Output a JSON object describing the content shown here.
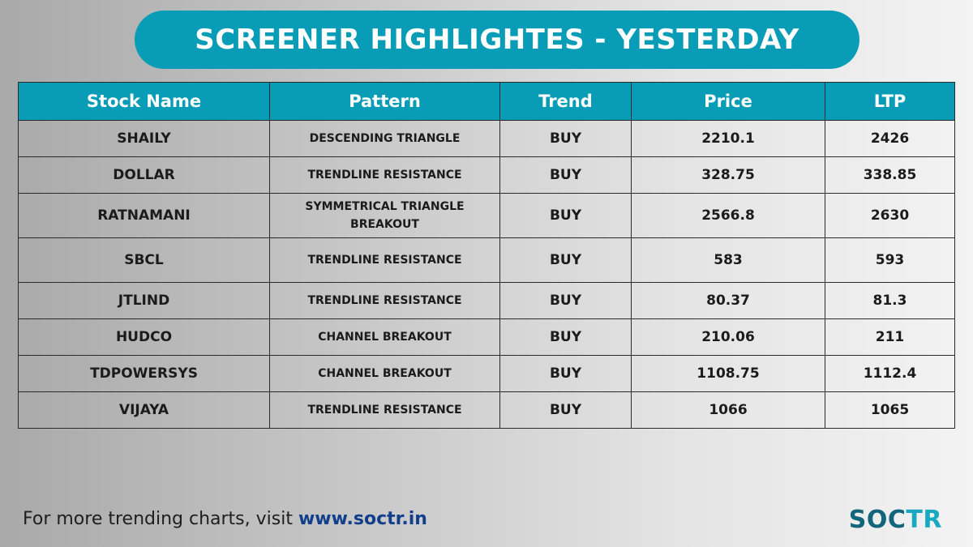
{
  "header": {
    "title": "SCREENER HIGHLIGHTES - YESTERDAY",
    "accent_color": "#099cb6"
  },
  "table": {
    "columns": [
      "Stock Name",
      "Pattern",
      "Trend",
      "Price",
      "LTP"
    ],
    "rows": [
      {
        "stock": "SHAILY",
        "pattern": "DESCENDING TRIANGLE",
        "trend": "BUY",
        "price": "2210.1",
        "ltp": "2426"
      },
      {
        "stock": "DOLLAR",
        "pattern": "TRENDLINE RESISTANCE",
        "trend": "BUY",
        "price": "328.75",
        "ltp": "338.85"
      },
      {
        "stock": "RATNAMANI",
        "pattern": "SYMMETRICAL TRIANGLE BREAKOUT",
        "trend": "BUY",
        "price": "2566.8",
        "ltp": "2630"
      },
      {
        "stock": "SBCL",
        "pattern": "TRENDLINE RESISTANCE",
        "trend": "BUY",
        "price": "583",
        "ltp": "593"
      },
      {
        "stock": "JTLIND",
        "pattern": "TRENDLINE RESISTANCE",
        "trend": "BUY",
        "price": "80.37",
        "ltp": "81.3"
      },
      {
        "stock": "HUDCO",
        "pattern": "CHANNEL BREAKOUT",
        "trend": "BUY",
        "price": "210.06",
        "ltp": "211"
      },
      {
        "stock": "TDPOWERSYS",
        "pattern": "CHANNEL BREAKOUT",
        "trend": "BUY",
        "price": "1108.75",
        "ltp": "1112.4"
      },
      {
        "stock": "VIJAYA",
        "pattern": "TRENDLINE RESISTANCE",
        "trend": "BUY",
        "price": "1066",
        "ltp": "1065"
      }
    ]
  },
  "footer": {
    "text": "For more trending charts, visit ",
    "link": "www.soctr.in"
  },
  "logo": {
    "part1": "SOC",
    "part2": "TR"
  }
}
